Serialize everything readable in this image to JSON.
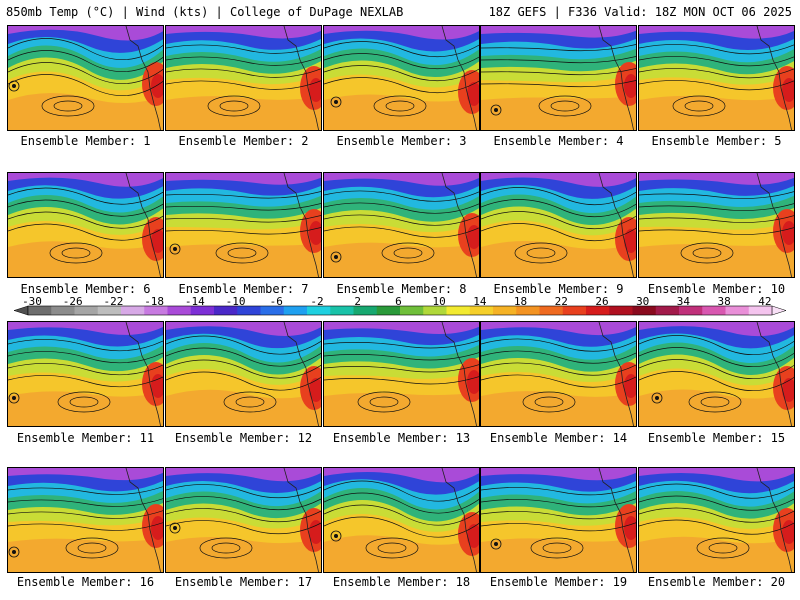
{
  "header": {
    "title_left": "850mb Temp (°C) | Wind (kts) | College of DuPage NEXLAB",
    "title_right": "18Z GEFS | F336 Valid: 18Z MON OCT 06 2025"
  },
  "members": [
    {
      "label": "Ensemble Member: 1"
    },
    {
      "label": "Ensemble Member: 2"
    },
    {
      "label": "Ensemble Member: 3"
    },
    {
      "label": "Ensemble Member: 4"
    },
    {
      "label": "Ensemble Member: 5"
    },
    {
      "label": "Ensemble Member: 6"
    },
    {
      "label": "Ensemble Member: 7"
    },
    {
      "label": "Ensemble Member: 8"
    },
    {
      "label": "Ensemble Member: 9"
    },
    {
      "label": "Ensemble Member: 10"
    },
    {
      "label": "Ensemble Member: 11"
    },
    {
      "label": "Ensemble Member: 12"
    },
    {
      "label": "Ensemble Member: 13"
    },
    {
      "label": "Ensemble Member: 14"
    },
    {
      "label": "Ensemble Member: 15"
    },
    {
      "label": "Ensemble Member: 16"
    },
    {
      "label": "Ensemble Member: 17"
    },
    {
      "label": "Ensemble Member: 18"
    },
    {
      "label": "Ensemble Member: 19"
    },
    {
      "label": "Ensemble Member: 20"
    }
  ],
  "colorbar": {
    "tick_labels": [
      "-30",
      "-26",
      "-22",
      "-18",
      "-14",
      "-10",
      "-6",
      "-2",
      "2",
      "6",
      "10",
      "14",
      "18",
      "22",
      "26",
      "30",
      "34",
      "38",
      "42"
    ],
    "colors": [
      "#6e6e6e",
      "#8c8c8c",
      "#a5a5a5",
      "#bdbdbd",
      "#d7a9e6",
      "#c77ae0",
      "#a94bd8",
      "#7d2fd6",
      "#4a28c8",
      "#2f44d8",
      "#2a6ee8",
      "#1fa0f0",
      "#1fd0e0",
      "#19c2a8",
      "#17a870",
      "#2a9a3a",
      "#6fbf3a",
      "#b0d83a",
      "#f2ea30",
      "#f5cf2a",
      "#f5b225",
      "#f39322",
      "#ef6a20",
      "#e8401e",
      "#d61c1c",
      "#b01020",
      "#8a0a1e",
      "#a21a4a",
      "#c0307a",
      "#d857b0",
      "#e98fd8",
      "#f4c4ee"
    ]
  }
}
